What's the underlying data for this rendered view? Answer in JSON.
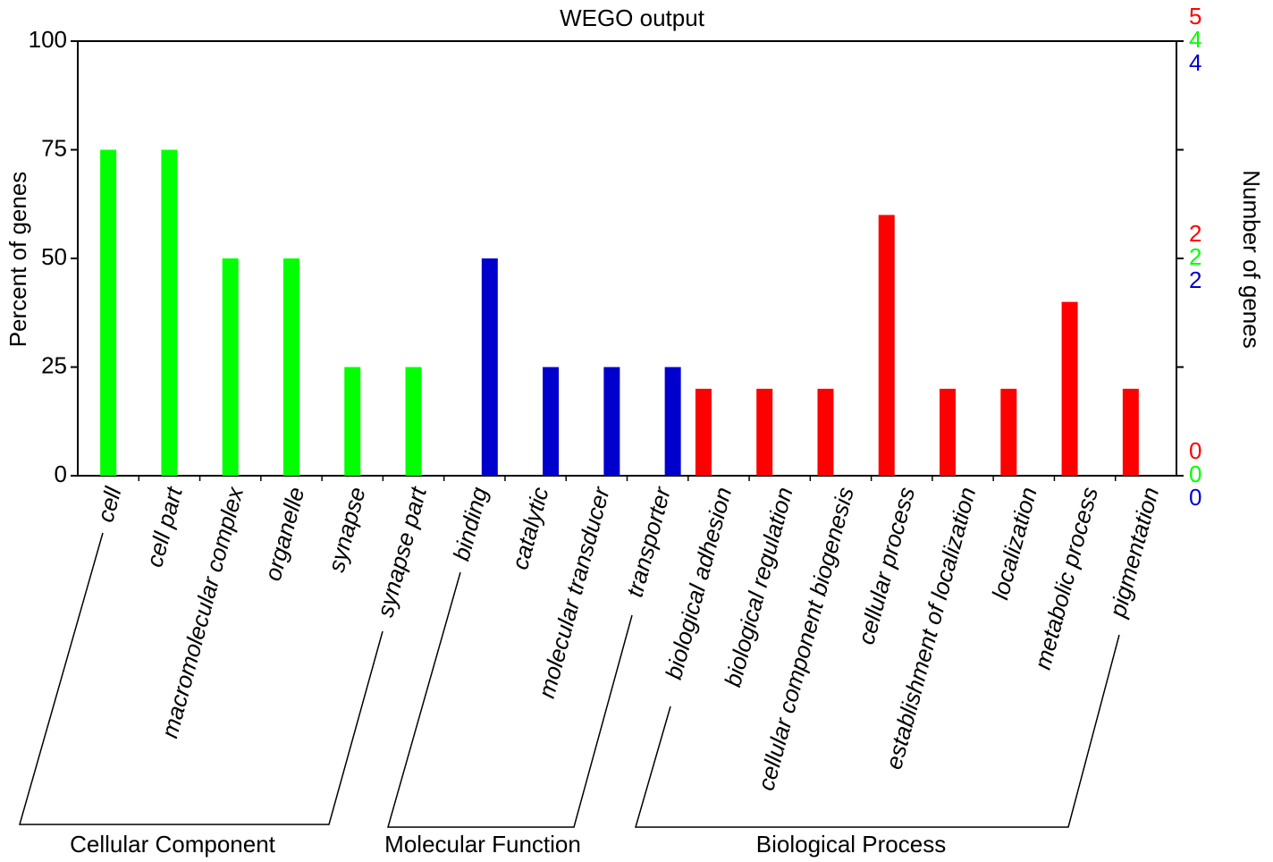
{
  "chart_data": {
    "type": "bar",
    "title": "WEGO output",
    "y_label": "Percent of genes",
    "y2_label": "Number of genes",
    "categories": [
      "cell",
      "cell part",
      "macromolecular complex",
      "organelle",
      "synapse",
      "synapse part",
      "binding",
      "catalytic",
      "molecular transducer",
      "transporter",
      "biological adhesion",
      "biological regulation",
      "cellular component biogenesis",
      "cellular process",
      "establishment of localization",
      "localization",
      "metabolic process",
      "pigmentation"
    ],
    "ylim": [
      0,
      100
    ],
    "yticks": [
      0,
      25,
      50,
      75,
      100
    ],
    "series": [
      {
        "name": "Cellular Component",
        "color": "#00ff00",
        "values": [
          75,
          75,
          50,
          50,
          25,
          25,
          null,
          null,
          null,
          null,
          null,
          null,
          null,
          null,
          null,
          null,
          null,
          null
        ],
        "y2ticks": [
          0,
          2,
          4
        ]
      },
      {
        "name": "Molecular Function",
        "color": "#0000cc",
        "values": [
          null,
          null,
          null,
          null,
          null,
          null,
          50,
          25,
          25,
          25,
          null,
          null,
          null,
          null,
          null,
          null,
          null,
          null
        ],
        "y2ticks": [
          0,
          2,
          4
        ]
      },
      {
        "name": "Biological Process",
        "color": "#ff0000",
        "values": [
          null,
          null,
          null,
          null,
          null,
          null,
          null,
          null,
          null,
          null,
          20,
          20,
          20,
          60,
          20,
          20,
          40,
          20
        ],
        "y2ticks": [
          0,
          2,
          5
        ]
      }
    ]
  }
}
